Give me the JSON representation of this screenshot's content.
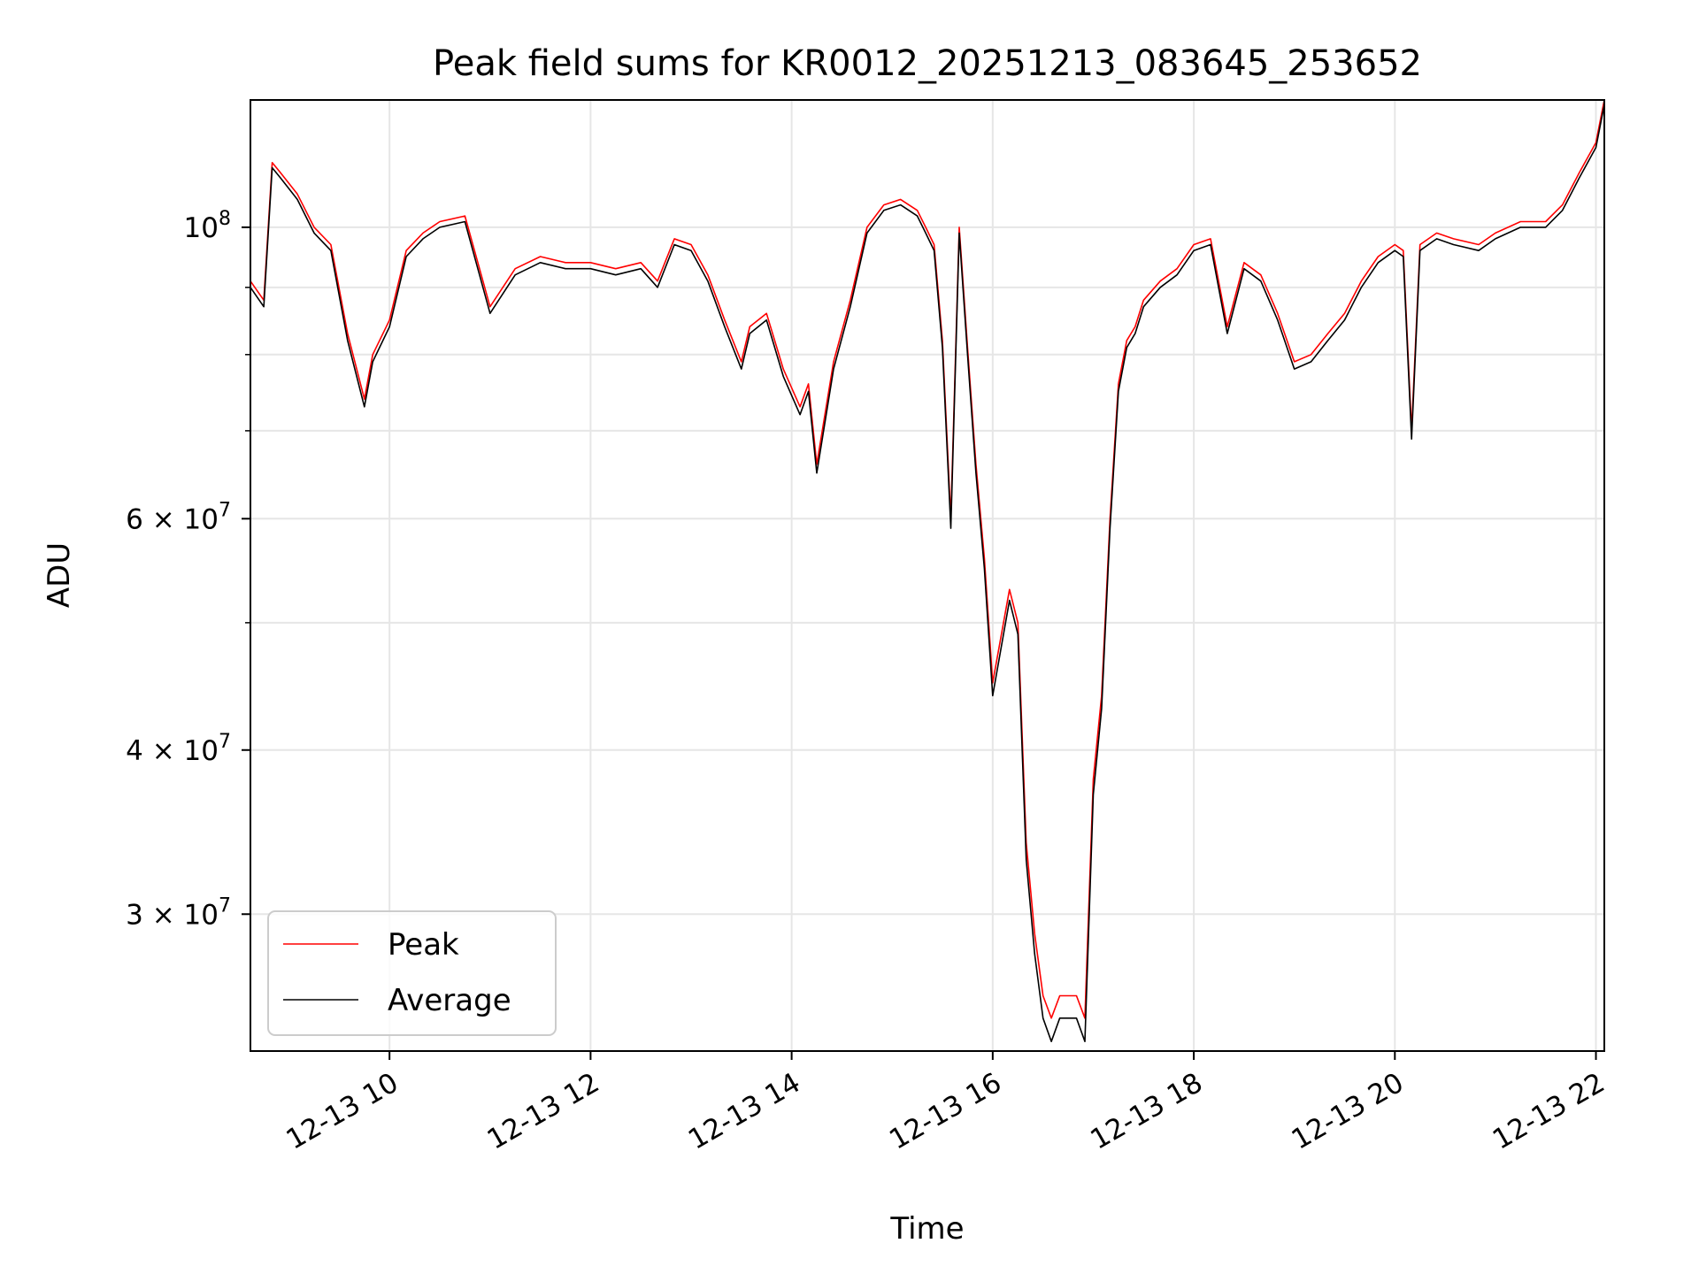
{
  "chart_data": {
    "type": "line",
    "title": "Peak field sums for KR0012_20251213_083645_253652",
    "xlabel": "Time",
    "ylabel": "ADU",
    "x_axis_type": "time",
    "xlim": [
      "2025-12-13 08:37",
      "2025-12-13 22:05"
    ],
    "y_scale": "log",
    "ylim": [
      23600000,
      125000000
    ],
    "grid": true,
    "legend_position": "lower-left",
    "x_ticks": [
      {
        "value": "2025-12-13 10:00",
        "label": "12-13 10"
      },
      {
        "value": "2025-12-13 12:00",
        "label": "12-13 12"
      },
      {
        "value": "2025-12-13 14:00",
        "label": "12-13 14"
      },
      {
        "value": "2025-12-13 16:00",
        "label": "12-13 16"
      },
      {
        "value": "2025-12-13 18:00",
        "label": "12-13 18"
      },
      {
        "value": "2025-12-13 20:00",
        "label": "12-13 20"
      },
      {
        "value": "2025-12-13 22:00",
        "label": "12-13 22"
      }
    ],
    "y_ticks": [
      {
        "value": 100000000,
        "mantissa": "",
        "base": "10",
        "exp": "8"
      },
      {
        "value": 60000000,
        "mantissa": "6 × ",
        "base": "10",
        "exp": "7"
      },
      {
        "value": 40000000,
        "mantissa": "4 × ",
        "base": "10",
        "exp": "7"
      },
      {
        "value": 30000000,
        "mantissa": "3 × ",
        "base": "10",
        "exp": "7"
      }
    ],
    "y_minor_ticks": [
      90000000,
      80000000,
      70000000,
      50000000
    ],
    "series": [
      {
        "name": "Peak",
        "color": "#ff0000"
      },
      {
        "name": "Average",
        "color": "#000000"
      }
    ],
    "x": [
      "2025-12-13 08:37",
      "2025-12-13 08:45",
      "2025-12-13 08:50",
      "2025-12-13 08:55",
      "2025-12-13 09:05",
      "2025-12-13 09:15",
      "2025-12-13 09:25",
      "2025-12-13 09:35",
      "2025-12-13 09:45",
      "2025-12-13 09:50",
      "2025-12-13 10:00",
      "2025-12-13 10:10",
      "2025-12-13 10:20",
      "2025-12-13 10:30",
      "2025-12-13 10:45",
      "2025-12-13 11:00",
      "2025-12-13 11:15",
      "2025-12-13 11:30",
      "2025-12-13 11:45",
      "2025-12-13 12:00",
      "2025-12-13 12:15",
      "2025-12-13 12:30",
      "2025-12-13 12:40",
      "2025-12-13 12:50",
      "2025-12-13 13:00",
      "2025-12-13 13:10",
      "2025-12-13 13:20",
      "2025-12-13 13:30",
      "2025-12-13 13:35",
      "2025-12-13 13:45",
      "2025-12-13 13:55",
      "2025-12-13 14:05",
      "2025-12-13 14:10",
      "2025-12-13 14:15",
      "2025-12-13 14:25",
      "2025-12-13 14:35",
      "2025-12-13 14:45",
      "2025-12-13 14:55",
      "2025-12-13 15:05",
      "2025-12-13 15:15",
      "2025-12-13 15:20",
      "2025-12-13 15:25",
      "2025-12-13 15:30",
      "2025-12-13 15:35",
      "2025-12-13 15:40",
      "2025-12-13 15:45",
      "2025-12-13 15:50",
      "2025-12-13 15:55",
      "2025-12-13 16:00",
      "2025-12-13 16:10",
      "2025-12-13 16:15",
      "2025-12-13 16:20",
      "2025-12-13 16:25",
      "2025-12-13 16:30",
      "2025-12-13 16:35",
      "2025-12-13 16:40",
      "2025-12-13 16:45",
      "2025-12-13 16:50",
      "2025-12-13 16:55",
      "2025-12-13 17:00",
      "2025-12-13 17:05",
      "2025-12-13 17:10",
      "2025-12-13 17:15",
      "2025-12-13 17:20",
      "2025-12-13 17:25",
      "2025-12-13 17:30",
      "2025-12-13 17:40",
      "2025-12-13 17:50",
      "2025-12-13 18:00",
      "2025-12-13 18:10",
      "2025-12-13 18:20",
      "2025-12-13 18:30",
      "2025-12-13 18:40",
      "2025-12-13 18:50",
      "2025-12-13 19:00",
      "2025-12-13 19:10",
      "2025-12-13 19:20",
      "2025-12-13 19:30",
      "2025-12-13 19:40",
      "2025-12-13 19:50",
      "2025-12-13 20:00",
      "2025-12-13 20:05",
      "2025-12-13 20:10",
      "2025-12-13 20:15",
      "2025-12-13 20:25",
      "2025-12-13 20:35",
      "2025-12-13 20:50",
      "2025-12-13 21:00",
      "2025-12-13 21:15",
      "2025-12-13 21:30",
      "2025-12-13 21:40",
      "2025-12-13 21:50",
      "2025-12-13 22:00",
      "2025-12-13 22:05"
    ],
    "peak": [
      91000000,
      88000000,
      112000000,
      110000000,
      106000000,
      100000000,
      97000000,
      83000000,
      74000000,
      80000000,
      85000000,
      96000000,
      99000000,
      101000000,
      102000000,
      87000000,
      93000000,
      95000000,
      94000000,
      94000000,
      93000000,
      94000000,
      91000000,
      98000000,
      97000000,
      92000000,
      85000000,
      79000000,
      84000000,
      86000000,
      78000000,
      73000000,
      76000000,
      66000000,
      79000000,
      88000000,
      100000000,
      104000000,
      105000000,
      103000000,
      100000000,
      97000000,
      82000000,
      60000000,
      100000000,
      81000000,
      66000000,
      56000000,
      45000000,
      53000000,
      50000000,
      34000000,
      29000000,
      26000000,
      25000000,
      26000000,
      26000000,
      26000000,
      25000000,
      38000000,
      44000000,
      60000000,
      76000000,
      82000000,
      84000000,
      88000000,
      91000000,
      93000000,
      97000000,
      98000000,
      84000000,
      94000000,
      92000000,
      86000000,
      79000000,
      80000000,
      83000000,
      86000000,
      91000000,
      95000000,
      97000000,
      96000000,
      70000000,
      97000000,
      99000000,
      98000000,
      97000000,
      99000000,
      101000000,
      101000000,
      104000000,
      110000000,
      116000000,
      125000000
    ],
    "average": [
      90000000,
      87000000,
      111000000,
      109000000,
      105000000,
      99000000,
      96000000,
      82000000,
      73000000,
      79000000,
      84000000,
      95000000,
      98000000,
      100000000,
      101000000,
      86000000,
      92000000,
      94000000,
      93000000,
      93000000,
      92000000,
      93000000,
      90000000,
      97000000,
      96000000,
      91000000,
      84000000,
      78000000,
      83000000,
      85000000,
      77000000,
      72000000,
      75000000,
      65000000,
      78000000,
      87000000,
      99000000,
      103000000,
      104000000,
      102000000,
      99000000,
      96000000,
      81000000,
      59000000,
      99000000,
      80000000,
      65000000,
      55000000,
      44000000,
      52000000,
      49000000,
      33000000,
      28000000,
      25000000,
      24000000,
      25000000,
      25000000,
      25000000,
      24000000,
      37000000,
      43000000,
      59000000,
      75000000,
      81000000,
      83000000,
      87000000,
      90000000,
      92000000,
      96000000,
      97000000,
      83000000,
      93000000,
      91000000,
      85000000,
      78000000,
      79000000,
      82000000,
      85000000,
      90000000,
      94000000,
      96000000,
      95000000,
      69000000,
      96000000,
      98000000,
      97000000,
      96000000,
      98000000,
      100000000,
      100000000,
      103000000,
      109000000,
      115000000,
      124000000
    ]
  }
}
